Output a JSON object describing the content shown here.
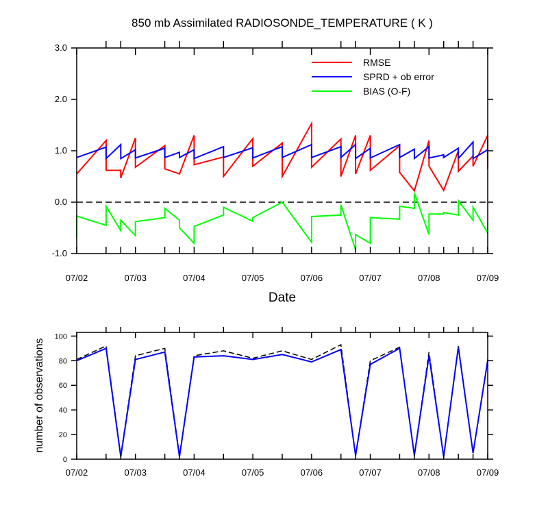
{
  "chart_data": [
    {
      "type": "line",
      "title": "850 mb Assimilated RADIOSONDE_TEMPERATURE ( K )",
      "xlabel": "Date",
      "ylabel": "",
      "ylim": [
        -1.0,
        3.0
      ],
      "yticks": [
        "-1.0",
        "0.0",
        "1.0",
        "2.0",
        "3.0"
      ],
      "xlim": [
        0,
        7
      ],
      "xticks": [
        {
          "x": 0,
          "label": "07/02"
        },
        {
          "x": 1,
          "label": "07/03"
        },
        {
          "x": 2,
          "label": "07/04"
        },
        {
          "x": 3,
          "label": "07/05"
        },
        {
          "x": 4,
          "label": "07/06"
        },
        {
          "x": 5,
          "label": "07/07"
        },
        {
          "x": 6,
          "label": "07/08"
        },
        {
          "x": 7,
          "label": "07/09"
        }
      ],
      "minor_ticks": [
        0.5,
        0.75,
        1.5,
        1.75,
        2.5,
        3.5,
        4.5,
        4.75,
        5.5,
        5.75,
        6.25,
        6.5,
        6.75
      ],
      "zero_line": true,
      "legend_position": "top-right",
      "series": [
        {
          "name": "RMSE",
          "color": "#ff0000",
          "points": [
            [
              0,
              0.55
            ],
            [
              0.5,
              1.2
            ],
            [
              0.5,
              0.62
            ],
            [
              0.75,
              0.62
            ],
            [
              0.75,
              0.47
            ],
            [
              1,
              1.25
            ],
            [
              1,
              0.68
            ],
            [
              1.5,
              1.1
            ],
            [
              1.5,
              0.65
            ],
            [
              1.75,
              0.55
            ],
            [
              2,
              1.3
            ],
            [
              2,
              0.73
            ],
            [
              2.5,
              0.88
            ],
            [
              2.5,
              0.5
            ],
            [
              3,
              1.24
            ],
            [
              3,
              0.7
            ],
            [
              3.5,
              1.15
            ],
            [
              3.5,
              0.5
            ],
            [
              4,
              1.53
            ],
            [
              4,
              0.68
            ],
            [
              4.5,
              1.23
            ],
            [
              4.5,
              0.5
            ],
            [
              4.75,
              1.3
            ],
            [
              4.75,
              0.55
            ],
            [
              5,
              1.3
            ],
            [
              5,
              0.62
            ],
            [
              5.5,
              1.1
            ],
            [
              5.5,
              0.58
            ],
            [
              5.75,
              0.22
            ],
            [
              6,
              1.2
            ],
            [
              6,
              0.7
            ],
            [
              6.25,
              0.23
            ],
            [
              6.5,
              1.0
            ],
            [
              6.5,
              0.6
            ],
            [
              6.75,
              0.9
            ],
            [
              6.75,
              0.7
            ],
            [
              7,
              1.3
            ],
            [
              7,
              0.65
            ]
          ]
        },
        {
          "name": "SPRD + ob error",
          "color": "#0000ff",
          "points": [
            [
              0,
              0.87
            ],
            [
              0.5,
              1.07
            ],
            [
              0.5,
              0.85
            ],
            [
              0.75,
              1.12
            ],
            [
              0.75,
              0.85
            ],
            [
              1,
              1.02
            ],
            [
              1,
              0.86
            ],
            [
              1.5,
              1.05
            ],
            [
              1.5,
              0.87
            ],
            [
              1.75,
              0.97
            ],
            [
              1.75,
              0.87
            ],
            [
              2,
              1.02
            ],
            [
              2,
              0.85
            ],
            [
              2.5,
              1.08
            ],
            [
              2.5,
              0.87
            ],
            [
              3,
              1.06
            ],
            [
              3,
              0.86
            ],
            [
              3.5,
              1.08
            ],
            [
              3.5,
              0.87
            ],
            [
              4,
              1.12
            ],
            [
              4,
              0.87
            ],
            [
              4.5,
              1.08
            ],
            [
              4.5,
              0.87
            ],
            [
              4.75,
              1.12
            ],
            [
              4.75,
              0.85
            ],
            [
              5,
              1.05
            ],
            [
              5,
              0.86
            ],
            [
              5.5,
              1.12
            ],
            [
              5.5,
              0.87
            ],
            [
              5.75,
              1.03
            ],
            [
              5.75,
              0.85
            ],
            [
              6,
              1.08
            ],
            [
              6,
              0.86
            ],
            [
              6.25,
              0.92
            ],
            [
              6.25,
              0.87
            ],
            [
              6.5,
              1.05
            ],
            [
              6.5,
              0.85
            ],
            [
              6.75,
              1.17
            ],
            [
              6.75,
              0.85
            ],
            [
              7,
              1.02
            ]
          ]
        },
        {
          "name": "BIAS (O-F)",
          "color": "#00ff00",
          "points": [
            [
              0,
              -0.7
            ],
            [
              0,
              -0.27
            ],
            [
              0.5,
              -0.45
            ],
            [
              0.5,
              -0.08
            ],
            [
              0.75,
              -0.55
            ],
            [
              0.75,
              -0.35
            ],
            [
              1,
              -0.65
            ],
            [
              1,
              -0.38
            ],
            [
              1.5,
              -0.3
            ],
            [
              1.5,
              -0.12
            ],
            [
              1.75,
              -0.35
            ],
            [
              1.75,
              -0.5
            ],
            [
              2,
              -0.8
            ],
            [
              2,
              -0.47
            ],
            [
              2.5,
              -0.25
            ],
            [
              2.5,
              -0.1
            ],
            [
              3,
              -0.37
            ],
            [
              3,
              -0.3
            ],
            [
              3.5,
              0.0
            ],
            [
              4,
              -0.78
            ],
            [
              4,
              -0.28
            ],
            [
              4.5,
              -0.25
            ],
            [
              4.5,
              -0.05
            ],
            [
              4.75,
              -0.93
            ],
            [
              4.75,
              -0.63
            ],
            [
              5,
              -0.8
            ],
            [
              5,
              -0.3
            ],
            [
              5.5,
              -0.33
            ],
            [
              5.5,
              -0.08
            ],
            [
              5.75,
              -0.12
            ],
            [
              5.75,
              0.18
            ],
            [
              6,
              -0.63
            ],
            [
              6,
              -0.23
            ],
            [
              6.25,
              -0.23
            ],
            [
              6.25,
              -0.2
            ],
            [
              6.5,
              -0.25
            ],
            [
              6.5,
              0.03
            ],
            [
              6.75,
              -0.35
            ],
            [
              6.75,
              -0.1
            ],
            [
              7,
              -0.6
            ]
          ]
        }
      ]
    },
    {
      "type": "line",
      "title": "",
      "xlabel": "",
      "ylabel": "number of observations",
      "ylim": [
        0,
        103
      ],
      "yticks": [
        "0",
        "20",
        "40",
        "60",
        "80",
        "100"
      ],
      "xlim": [
        0,
        7
      ],
      "xticks": [
        {
          "x": 0,
          "label": "07/02"
        },
        {
          "x": 1,
          "label": "07/03"
        },
        {
          "x": 2,
          "label": "07/04"
        },
        {
          "x": 3,
          "label": "07/05"
        },
        {
          "x": 4,
          "label": "07/06"
        },
        {
          "x": 5,
          "label": "07/07"
        },
        {
          "x": 6,
          "label": "07/08"
        },
        {
          "x": 7,
          "label": "07/09"
        }
      ],
      "minor_ticks": [
        0.5,
        0.75,
        1.5,
        1.75,
        2.5,
        3.5,
        4.5,
        4.75,
        5.5,
        5.75,
        6.25,
        6.5,
        6.75
      ],
      "series": [
        {
          "color": "#000000",
          "dashed": true,
          "points": [
            [
              0,
              81
            ],
            [
              0.5,
              92
            ],
            [
              0.75,
              3
            ],
            [
              1,
              84
            ],
            [
              1.5,
              90
            ],
            [
              1.75,
              3
            ],
            [
              2,
              84
            ],
            [
              2.5,
              88
            ],
            [
              3,
              82
            ],
            [
              3.5,
              88
            ],
            [
              4,
              81
            ],
            [
              4.5,
              93
            ],
            [
              4.75,
              3
            ],
            [
              5,
              80
            ],
            [
              5.5,
              91
            ],
            [
              5.75,
              3
            ],
            [
              6,
              87
            ],
            [
              6.25,
              2
            ],
            [
              6.5,
              92
            ],
            [
              6.75,
              5
            ],
            [
              7,
              81
            ]
          ]
        },
        {
          "color": "#0000ff",
          "dashed": false,
          "points": [
            [
              0,
              80
            ],
            [
              0.5,
              90
            ],
            [
              0.75,
              2
            ],
            [
              1,
              81
            ],
            [
              1.5,
              87
            ],
            [
              1.75,
              2
            ],
            [
              2,
              83
            ],
            [
              2.5,
              84
            ],
            [
              3,
              81
            ],
            [
              3.5,
              85
            ],
            [
              4,
              79
            ],
            [
              4.5,
              89
            ],
            [
              4.75,
              3
            ],
            [
              5,
              77
            ],
            [
              5.5,
              90
            ],
            [
              5.75,
              3
            ],
            [
              6,
              84
            ],
            [
              6.25,
              2
            ],
            [
              6.5,
              91
            ],
            [
              6.75,
              5
            ],
            [
              7,
              80
            ]
          ]
        }
      ]
    }
  ]
}
